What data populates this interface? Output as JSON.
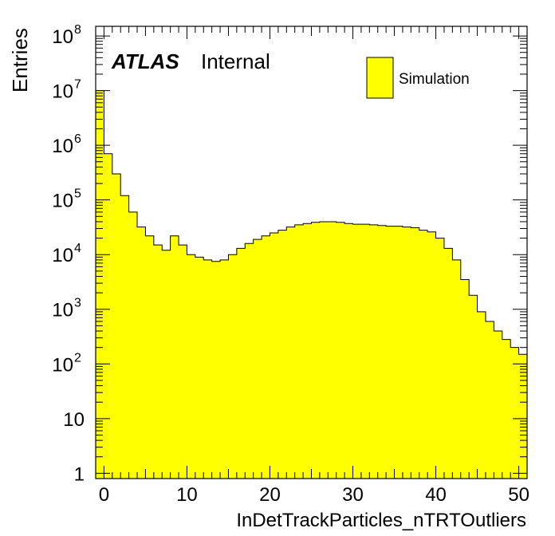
{
  "chart_data": {
    "type": "bar",
    "style": "histogram",
    "xlabel": "InDetTrackParticles_nTRTOutliers",
    "ylabel": "Entries",
    "xlim": [
      -1,
      51
    ],
    "ylim": [
      0.8,
      150000000
    ],
    "yscale": "log",
    "bin_width": 1,
    "x_ticks": [
      "0",
      "10",
      "20",
      "30",
      "40",
      "50"
    ],
    "y_ticks": [
      {
        "base": "1",
        "exp": ""
      },
      {
        "base": "10",
        "exp": ""
      },
      {
        "base": "10",
        "exp": "2"
      },
      {
        "base": "10",
        "exp": "3"
      },
      {
        "base": "10",
        "exp": "4"
      },
      {
        "base": "10",
        "exp": "5"
      },
      {
        "base": "10",
        "exp": "6"
      },
      {
        "base": "10",
        "exp": "7"
      },
      {
        "base": "10",
        "exp": "8"
      }
    ],
    "fill_color": "#ffff00",
    "line_color": "#000000",
    "x": [
      -1,
      0,
      1,
      2,
      3,
      4,
      5,
      6,
      7,
      8,
      9,
      10,
      11,
      12,
      13,
      14,
      15,
      16,
      17,
      18,
      19,
      20,
      21,
      22,
      23,
      24,
      25,
      26,
      27,
      28,
      29,
      30,
      31,
      32,
      33,
      34,
      35,
      36,
      37,
      38,
      39,
      40,
      41,
      42,
      43,
      44,
      45,
      46,
      47,
      48,
      49,
      50
    ],
    "values": [
      10000000,
      700000,
      300000,
      120000,
      60000,
      32000,
      22000,
      15000,
      12000,
      22000,
      15000,
      10000,
      9000,
      8000,
      7500,
      8000,
      10000,
      13000,
      16000,
      19000,
      22000,
      25000,
      28000,
      32000,
      35000,
      37000,
      39000,
      40000,
      40000,
      39000,
      37000,
      36000,
      36000,
      35000,
      34000,
      33000,
      33000,
      32000,
      31000,
      28000,
      26000,
      20000,
      13000,
      8000,
      3500,
      1800,
      900,
      600,
      400,
      280,
      200,
      150
    ],
    "legend": {
      "label": "Simulation",
      "position": "top-right"
    },
    "annotation": {
      "bold": "ATLAS",
      "normal": "Internal"
    }
  }
}
